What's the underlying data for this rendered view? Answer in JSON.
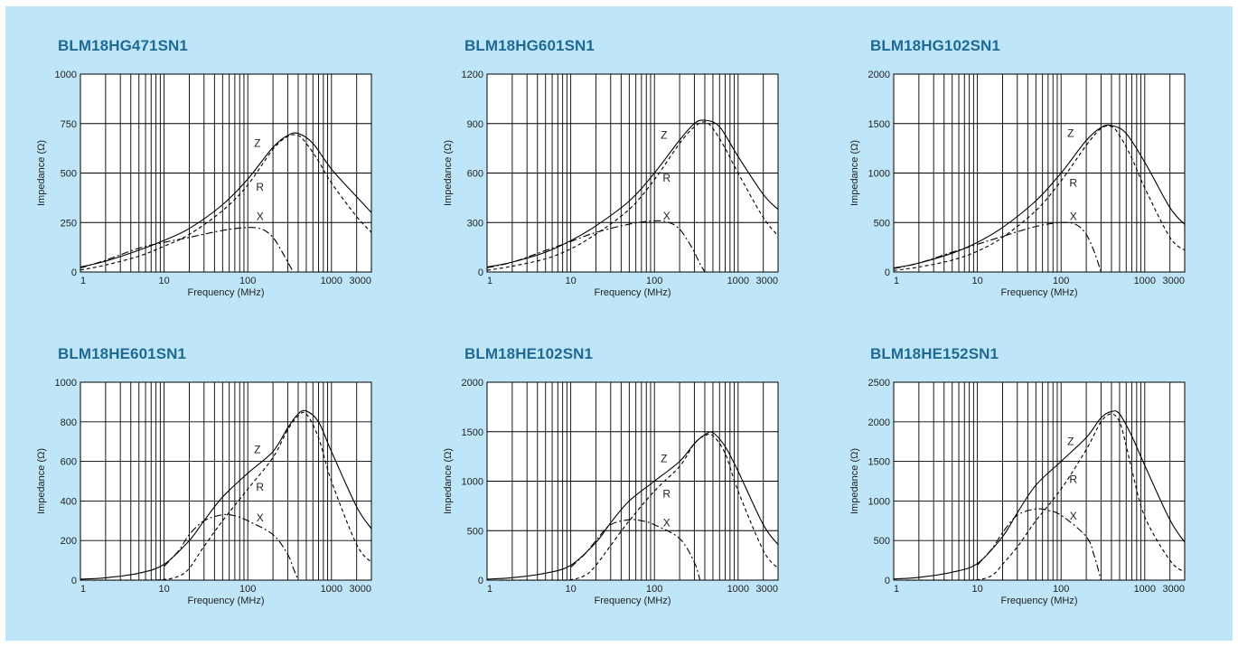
{
  "colors": {
    "background": "#bfe6f8",
    "title": "#1f6a93",
    "plot_bg": "#ffffff",
    "line": "#000000"
  },
  "chart_data": [
    {
      "type": "line",
      "title": "BLM18HG471SN1",
      "xlabel": "Frequency (MHz)",
      "ylabel": "Impedance (Ω)",
      "xscale": "log",
      "xlim": [
        1,
        3000
      ],
      "ylim": [
        0,
        1000
      ],
      "xticks": [
        1,
        10,
        100,
        1000,
        3000
      ],
      "yticks": [
        0,
        250,
        500,
        750,
        1000
      ],
      "grid": true,
      "series": [
        {
          "name": "Z",
          "style": "solid",
          "x": [
            1,
            2,
            5,
            10,
            20,
            50,
            100,
            200,
            300,
            400,
            600,
            1000,
            2000,
            3000
          ],
          "y": [
            25,
            55,
            110,
            160,
            220,
            340,
            470,
            630,
            690,
            700,
            650,
            520,
            380,
            300
          ]
        },
        {
          "name": "R",
          "style": "dashed",
          "x": [
            1,
            2,
            5,
            10,
            20,
            50,
            100,
            200,
            300,
            400,
            500,
            700,
            1000,
            2000,
            3000
          ],
          "y": [
            10,
            35,
            80,
            130,
            190,
            310,
            440,
            620,
            685,
            690,
            650,
            560,
            450,
            280,
            200
          ]
        },
        {
          "name": "X",
          "style": "dashdot",
          "x": [
            1,
            2,
            5,
            10,
            20,
            50,
            100,
            150,
            200,
            250,
            300,
            350
          ],
          "y": [
            20,
            60,
            120,
            150,
            175,
            210,
            225,
            215,
            175,
            110,
            50,
            0
          ]
        }
      ],
      "labels": [
        {
          "text": "Z",
          "x": 130,
          "y": 650
        },
        {
          "text": "R",
          "x": 140,
          "y": 430
        },
        {
          "text": "X",
          "x": 140,
          "y": 280
        }
      ]
    },
    {
      "type": "line",
      "title": "BLM18HG601SN1",
      "xlabel": "Frequency (MHz)",
      "ylabel": "Impedance (Ω)",
      "xscale": "log",
      "xlim": [
        1,
        3000
      ],
      "ylim": [
        0,
        1200
      ],
      "xticks": [
        1,
        10,
        100,
        1000,
        3000
      ],
      "yticks": [
        0,
        300,
        600,
        900,
        1200
      ],
      "grid": true,
      "series": [
        {
          "name": "Z",
          "style": "solid",
          "x": [
            1,
            2,
            5,
            10,
            20,
            50,
            100,
            200,
            300,
            400,
            600,
            1000,
            2000,
            3000
          ],
          "y": [
            30,
            60,
            120,
            190,
            280,
            430,
            600,
            800,
            900,
            920,
            880,
            700,
            470,
            380
          ]
        },
        {
          "name": "R",
          "style": "dashed",
          "x": [
            1,
            2,
            5,
            10,
            20,
            50,
            100,
            200,
            300,
            400,
            500,
            700,
            1000,
            2000,
            3000
          ],
          "y": [
            10,
            35,
            80,
            140,
            230,
            380,
            560,
            780,
            880,
            910,
            870,
            750,
            600,
            330,
            220
          ]
        },
        {
          "name": "X",
          "style": "dashdot",
          "x": [
            1,
            2,
            5,
            10,
            20,
            50,
            100,
            150,
            200,
            250,
            300,
            350,
            400
          ],
          "y": [
            25,
            60,
            130,
            185,
            240,
            290,
            310,
            300,
            260,
            190,
            120,
            50,
            0
          ]
        }
      ],
      "labels": [
        {
          "text": "Z",
          "x": 130,
          "y": 830
        },
        {
          "text": "R",
          "x": 140,
          "y": 570
        },
        {
          "text": "X",
          "x": 140,
          "y": 340
        }
      ]
    },
    {
      "type": "line",
      "title": "BLM18HG102SN1",
      "xlabel": "Frequency (MHz)",
      "ylabel": "Impedance (Ω)",
      "xscale": "log",
      "xlim": [
        1,
        3000
      ],
      "ylim": [
        0,
        2000
      ],
      "xticks": [
        1,
        10,
        100,
        1000,
        3000
      ],
      "yticks": [
        0,
        500,
        1000,
        1500,
        2000
      ],
      "grid": true,
      "series": [
        {
          "name": "Z",
          "style": "solid",
          "x": [
            1,
            2,
            5,
            10,
            20,
            50,
            100,
            200,
            300,
            400,
            600,
            1000,
            2000,
            3000
          ],
          "y": [
            40,
            90,
            190,
            300,
            450,
            720,
            1000,
            1330,
            1460,
            1480,
            1400,
            1110,
            650,
            480
          ]
        },
        {
          "name": "R",
          "style": "dashed",
          "x": [
            1,
            2,
            5,
            10,
            20,
            50,
            100,
            200,
            300,
            400,
            500,
            700,
            1000,
            2000,
            3000
          ],
          "y": [
            15,
            50,
            120,
            210,
            350,
            620,
            920,
            1280,
            1450,
            1470,
            1380,
            1150,
            850,
            350,
            220
          ]
        },
        {
          "name": "X",
          "style": "dashdot",
          "x": [
            1,
            2,
            5,
            10,
            20,
            50,
            100,
            150,
            200,
            250,
            300
          ],
          "y": [
            35,
            90,
            200,
            280,
            360,
            460,
            500,
            480,
            380,
            200,
            0
          ]
        }
      ],
      "labels": [
        {
          "text": "Z",
          "x": 130,
          "y": 1400
        },
        {
          "text": "R",
          "x": 140,
          "y": 900
        },
        {
          "text": "X",
          "x": 140,
          "y": 560
        }
      ]
    },
    {
      "type": "line",
      "title": "BLM18HE601SN1",
      "xlabel": "Frequency (MHz)",
      "ylabel": "Impedance (Ω)",
      "xscale": "log",
      "xlim": [
        1,
        3000
      ],
      "ylim": [
        0,
        1000
      ],
      "xticks": [
        1,
        10,
        100,
        1000,
        3000
      ],
      "yticks": [
        0,
        200,
        400,
        600,
        800,
        1000
      ],
      "grid": true,
      "series": [
        {
          "name": "Z",
          "style": "solid",
          "x": [
            1,
            2,
            5,
            10,
            20,
            30,
            50,
            100,
            200,
            300,
            400,
            500,
            700,
            1000,
            2000,
            3000
          ],
          "y": [
            5,
            12,
            35,
            80,
            200,
            300,
            420,
            540,
            650,
            770,
            840,
            855,
            800,
            650,
            370,
            260
          ]
        },
        {
          "name": "R",
          "style": "dashed",
          "x": [
            1,
            5,
            10,
            15,
            20,
            30,
            50,
            100,
            200,
            300,
            400,
            500,
            700,
            1000,
            2000,
            3000
          ],
          "y": [
            0,
            0,
            3,
            20,
            60,
            170,
            300,
            460,
            620,
            760,
            830,
            840,
            720,
            500,
            180,
            90
          ]
        },
        {
          "name": "X",
          "style": "dashdot",
          "x": [
            10,
            15,
            20,
            30,
            50,
            70,
            100,
            200,
            300,
            350,
            400
          ],
          "y": [
            70,
            150,
            230,
            300,
            330,
            325,
            300,
            230,
            130,
            60,
            0
          ]
        }
      ],
      "labels": [
        {
          "text": "Z",
          "x": 130,
          "y": 660
        },
        {
          "text": "R",
          "x": 140,
          "y": 470
        },
        {
          "text": "X",
          "x": 140,
          "y": 315
        }
      ]
    },
    {
      "type": "line",
      "title": "BLM18HE102SN1",
      "xlabel": "Frequency (MHz)",
      "ylabel": "Impedance (Ω)",
      "xscale": "log",
      "xlim": [
        1,
        3000
      ],
      "ylim": [
        0,
        2000
      ],
      "xticks": [
        1,
        10,
        100,
        1000,
        3000
      ],
      "yticks": [
        0,
        500,
        1000,
        1500,
        2000
      ],
      "grid": true,
      "series": [
        {
          "name": "Z",
          "style": "solid",
          "x": [
            1,
            2,
            5,
            10,
            20,
            30,
            50,
            100,
            200,
            300,
            400,
            500,
            700,
            1000,
            2000,
            3000
          ],
          "y": [
            10,
            25,
            70,
            150,
            380,
            580,
            800,
            1000,
            1200,
            1380,
            1470,
            1490,
            1350,
            1100,
            560,
            360
          ]
        },
        {
          "name": "R",
          "style": "dashed",
          "x": [
            1,
            5,
            10,
            15,
            20,
            30,
            50,
            100,
            200,
            300,
            400,
            500,
            700,
            1000,
            2000,
            3000
          ],
          "y": [
            0,
            0,
            5,
            50,
            150,
            350,
            600,
            900,
            1150,
            1380,
            1460,
            1460,
            1280,
            900,
            300,
            120
          ]
        },
        {
          "name": "X",
          "style": "dashdot",
          "x": [
            10,
            15,
            20,
            30,
            50,
            70,
            100,
            200,
            300,
            350
          ],
          "y": [
            130,
            270,
            400,
            560,
            610,
            600,
            560,
            420,
            180,
            0
          ]
        }
      ],
      "labels": [
        {
          "text": "Z",
          "x": 130,
          "y": 1230
        },
        {
          "text": "R",
          "x": 140,
          "y": 870
        },
        {
          "text": "X",
          "x": 140,
          "y": 580
        }
      ]
    },
    {
      "type": "line",
      "title": "BLM18HE152SN1",
      "xlabel": "Frequency (MHz)",
      "ylabel": "Impedance (Ω)",
      "xscale": "log",
      "xlim": [
        1,
        3000
      ],
      "ylim": [
        0,
        2500
      ],
      "xticks": [
        1,
        10,
        100,
        1000,
        3000
      ],
      "yticks": [
        0,
        500,
        1000,
        1500,
        2000,
        2500
      ],
      "grid": true,
      "series": [
        {
          "name": "Z",
          "style": "solid",
          "x": [
            1,
            2,
            5,
            10,
            20,
            30,
            50,
            100,
            200,
            300,
            400,
            500,
            700,
            1000,
            2000,
            3000
          ],
          "y": [
            15,
            35,
            100,
            210,
            550,
            850,
            1200,
            1500,
            1800,
            2050,
            2130,
            2100,
            1820,
            1450,
            760,
            480
          ]
        },
        {
          "name": "R",
          "style": "dashed",
          "x": [
            1,
            5,
            10,
            15,
            20,
            30,
            50,
            100,
            200,
            300,
            400,
            500,
            600,
            700,
            1000,
            2000,
            3000
          ],
          "y": [
            0,
            0,
            5,
            60,
            200,
            420,
            750,
            1150,
            1650,
            2000,
            2100,
            2000,
            1700,
            1400,
            800,
            250,
            100
          ]
        },
        {
          "name": "X",
          "style": "dashdot",
          "x": [
            10,
            15,
            20,
            30,
            50,
            70,
            100,
            200,
            250,
            300
          ],
          "y": [
            190,
            400,
            600,
            820,
            900,
            880,
            820,
            550,
            300,
            0
          ]
        }
      ],
      "labels": [
        {
          "text": "Z",
          "x": 130,
          "y": 1750
        },
        {
          "text": "R",
          "x": 140,
          "y": 1270
        },
        {
          "text": "X",
          "x": 140,
          "y": 810
        }
      ]
    }
  ]
}
